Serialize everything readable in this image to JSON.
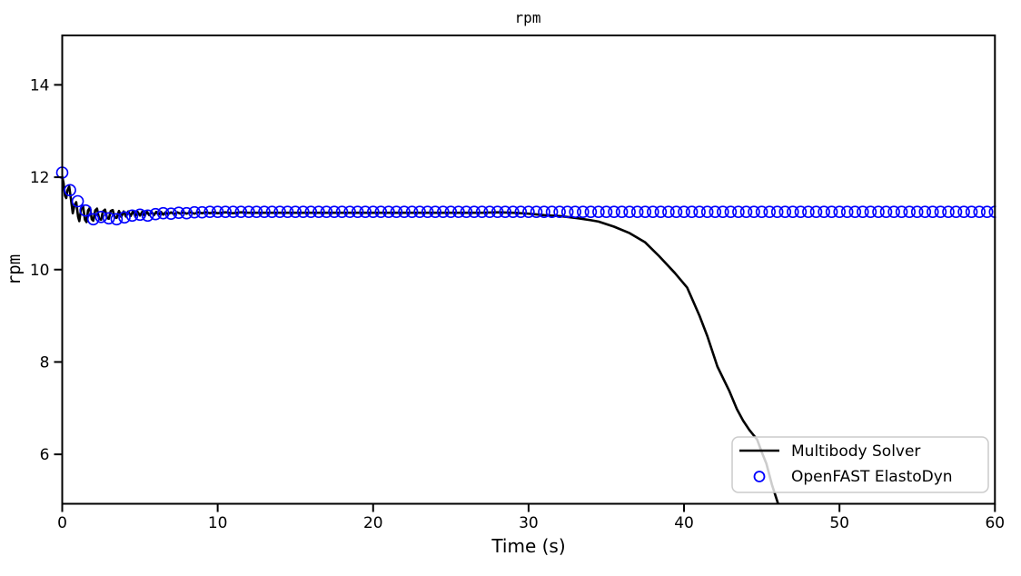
{
  "chart_data": {
    "type": "line",
    "title": "rpm",
    "xlabel": "Time (s)",
    "ylabel": "rpm",
    "xlim": [
      0,
      60
    ],
    "ylim": [
      4.93,
      15.07
    ],
    "xticks": [
      0,
      10,
      20,
      30,
      40,
      50,
      60
    ],
    "yticks": [
      6,
      8,
      10,
      12,
      14
    ],
    "grid": false,
    "legend_position": "lower right",
    "axis_color": "#000000",
    "background_color": "#ffffff",
    "series": [
      {
        "name": "Multibody Solver",
        "type": "line",
        "color": "#000000",
        "linewidth": 2.6,
        "points": [
          [
            0,
            12.02
          ],
          [
            0.08,
            11.88
          ],
          [
            0.18,
            11.6
          ],
          [
            0.26,
            11.55
          ],
          [
            0.34,
            11.72
          ],
          [
            0.45,
            11.8
          ],
          [
            0.58,
            11.48
          ],
          [
            0.68,
            11.22
          ],
          [
            0.78,
            11.38
          ],
          [
            0.9,
            11.46
          ],
          [
            1.02,
            11.14
          ],
          [
            1.1,
            11.05
          ],
          [
            1.22,
            11.33
          ],
          [
            1.34,
            11.38
          ],
          [
            1.46,
            11.08
          ],
          [
            1.56,
            11.03
          ],
          [
            1.66,
            11.28
          ],
          [
            1.78,
            11.34
          ],
          [
            1.9,
            11.09
          ],
          [
            2.0,
            11.06
          ],
          [
            2.12,
            11.28
          ],
          [
            2.24,
            11.32
          ],
          [
            2.37,
            11.1
          ],
          [
            2.5,
            11.08
          ],
          [
            2.62,
            11.26
          ],
          [
            2.75,
            11.3
          ],
          [
            2.88,
            11.12
          ],
          [
            3.0,
            11.1
          ],
          [
            3.12,
            11.27
          ],
          [
            3.25,
            11.29
          ],
          [
            3.38,
            11.13
          ],
          [
            3.5,
            11.12
          ],
          [
            3.65,
            11.27
          ],
          [
            3.8,
            11.14
          ],
          [
            3.95,
            11.26
          ],
          [
            4.1,
            11.15
          ],
          [
            4.25,
            11.26
          ],
          [
            4.4,
            11.16
          ],
          [
            4.55,
            11.26
          ],
          [
            4.7,
            11.16
          ],
          [
            4.85,
            11.25
          ],
          [
            5.0,
            11.17
          ],
          [
            5.15,
            11.25
          ],
          [
            5.3,
            11.17
          ],
          [
            5.45,
            11.25
          ],
          [
            5.6,
            11.18
          ],
          [
            5.75,
            11.25
          ],
          [
            5.9,
            11.18
          ],
          [
            6.05,
            11.25
          ],
          [
            6.2,
            11.19
          ],
          [
            6.35,
            11.25
          ],
          [
            6.5,
            11.19
          ],
          [
            6.65,
            11.24
          ],
          [
            6.8,
            11.2
          ],
          [
            7.0,
            11.24
          ],
          [
            7.2,
            11.2
          ],
          [
            7.4,
            11.24
          ],
          [
            7.6,
            11.21
          ],
          [
            7.8,
            11.24
          ],
          [
            8.0,
            11.21
          ],
          [
            8.25,
            11.24
          ],
          [
            8.5,
            11.21
          ],
          [
            8.75,
            11.24
          ],
          [
            9.0,
            11.22
          ],
          [
            9.25,
            11.24
          ],
          [
            9.5,
            11.22
          ],
          [
            9.75,
            11.24
          ],
          [
            10.0,
            11.22
          ],
          [
            10.5,
            11.24
          ],
          [
            11.0,
            11.22
          ],
          [
            11.5,
            11.24
          ],
          [
            12.0,
            11.23
          ],
          [
            13.0,
            11.23
          ],
          [
            14.0,
            11.23
          ],
          [
            15.0,
            11.23
          ],
          [
            16.0,
            11.23
          ],
          [
            17.0,
            11.23
          ],
          [
            18.0,
            11.23
          ],
          [
            19.0,
            11.23
          ],
          [
            20.0,
            11.23
          ],
          [
            21.0,
            11.23
          ],
          [
            22.0,
            11.23
          ],
          [
            23.0,
            11.23
          ],
          [
            24.0,
            11.23
          ],
          [
            25.0,
            11.23
          ],
          [
            26.0,
            11.23
          ],
          [
            27.0,
            11.23
          ],
          [
            28.0,
            11.24
          ],
          [
            29.0,
            11.23
          ],
          [
            30.0,
            11.21
          ],
          [
            31.0,
            11.18
          ],
          [
            32.0,
            11.16
          ],
          [
            33.0,
            11.12
          ],
          [
            34.0,
            11.07
          ],
          [
            34.5,
            11.04
          ],
          [
            35.5,
            10.93
          ],
          [
            36.5,
            10.79
          ],
          [
            37.5,
            10.59
          ],
          [
            38.4,
            10.29
          ],
          [
            39.4,
            9.93
          ],
          [
            40.2,
            9.61
          ],
          [
            41.0,
            9.0
          ],
          [
            41.5,
            8.56
          ],
          [
            42.15,
            7.9
          ],
          [
            42.9,
            7.38
          ],
          [
            43.4,
            6.98
          ],
          [
            43.8,
            6.73
          ],
          [
            44.2,
            6.53
          ],
          [
            44.7,
            6.32
          ],
          [
            45.0,
            6.05
          ],
          [
            45.3,
            5.8
          ],
          [
            45.65,
            5.35
          ],
          [
            46.05,
            4.93
          ],
          [
            46.3,
            4.6
          ]
        ]
      },
      {
        "name": "OpenFAST ElastoDyn",
        "type": "scatter",
        "marker": "open-circle",
        "color": "#0000ff",
        "marker_radius": 6,
        "marker_stroke": 1.6,
        "transient_points": [
          [
            0,
            12.1
          ],
          [
            0.5,
            11.72
          ],
          [
            1.0,
            11.48
          ],
          [
            1.5,
            11.28
          ],
          [
            2.0,
            11.09
          ],
          [
            2.5,
            11.14
          ],
          [
            3.0,
            11.11
          ],
          [
            3.5,
            11.09
          ],
          [
            4.0,
            11.13
          ],
          [
            4.5,
            11.17
          ],
          [
            5.0,
            11.19
          ],
          [
            5.5,
            11.17
          ],
          [
            6.0,
            11.2
          ],
          [
            6.5,
            11.22
          ],
          [
            7.0,
            11.21
          ],
          [
            7.5,
            11.23
          ],
          [
            8.0,
            11.22
          ],
          [
            8.5,
            11.24
          ],
          [
            9.0,
            11.24
          ],
          [
            9.5,
            11.25
          ],
          [
            10.0,
            11.25
          ]
        ],
        "steady": {
          "from": 10.5,
          "to": 60,
          "step": 0.5,
          "value": 11.25
        }
      }
    ]
  },
  "legend": {
    "entries": [
      {
        "label": "Multibody Solver"
      },
      {
        "label": "OpenFAST ElastoDyn"
      }
    ]
  }
}
